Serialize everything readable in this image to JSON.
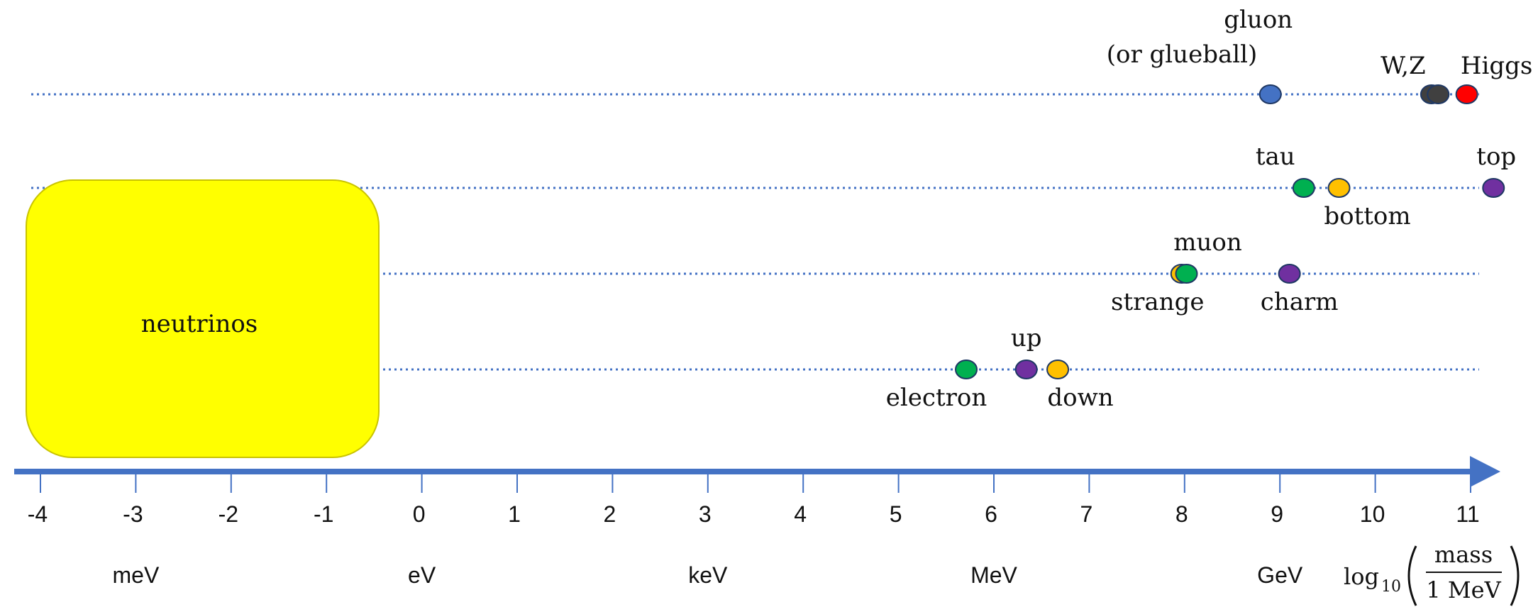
{
  "colors": {
    "axis": "#4472c4",
    "neutrino_box": "#ffff00",
    "lepton": "#00b050",
    "up_type_quark": "#7030a0",
    "down_type_quark": "#ffc000",
    "gluon": "#4472c4",
    "wz": "#404040",
    "higgs": "#ff0000"
  },
  "axis": {
    "ticks": [
      "-4",
      "-3",
      "-2",
      "-1",
      "0",
      "1",
      "2",
      "3",
      "4",
      "5",
      "6",
      "7",
      "8",
      "9",
      "10",
      "11"
    ],
    "units": [
      {
        "label": "meV",
        "at": -3
      },
      {
        "label": "eV",
        "at": 0
      },
      {
        "label": "keV",
        "at": 3
      },
      {
        "label": "MeV",
        "at": 6
      },
      {
        "label": "GeV",
        "at": 9
      }
    ],
    "title_log": "log",
    "title_sub": "10",
    "title_num": "mass",
    "title_den": "1 MeV"
  },
  "neutrinos": {
    "label": "neutrinos",
    "from": -4,
    "to": -0.3
  },
  "particles": [
    {
      "name": "electron",
      "x": 5.71,
      "row": 4,
      "color": "lepton",
      "label": "electron"
    },
    {
      "name": "up",
      "x": 6.34,
      "row": 4,
      "color": "up_type_quark",
      "label": "up"
    },
    {
      "name": "down",
      "x": 6.67,
      "row": 4,
      "color": "down_type_quark",
      "label": "down"
    },
    {
      "name": "strange",
      "x": 7.97,
      "row": 3,
      "color": "down_type_quark",
      "label": "strange"
    },
    {
      "name": "muon",
      "x": 8.02,
      "row": 3,
      "color": "lepton",
      "label": "muon"
    },
    {
      "name": "charm",
      "x": 9.1,
      "row": 3,
      "color": "up_type_quark",
      "label": "charm"
    },
    {
      "name": "tau",
      "x": 9.25,
      "row": 2,
      "color": "lepton",
      "label": "tau"
    },
    {
      "name": "bottom",
      "x": 9.62,
      "row": 2,
      "color": "down_type_quark",
      "label": "bottom"
    },
    {
      "name": "top",
      "x": 11.24,
      "row": 2,
      "color": "up_type_quark",
      "label": "top"
    },
    {
      "name": "gluon",
      "x": 8.9,
      "row": 1,
      "color": "gluon",
      "label": "gluon"
    },
    {
      "name": "w",
      "x": 10.59,
      "row": 1,
      "color": "wz",
      "label": "W,Z"
    },
    {
      "name": "z",
      "x": 10.66,
      "row": 1,
      "color": "wz",
      "label": ""
    },
    {
      "name": "higgs",
      "x": 10.96,
      "row": 1,
      "color": "higgs",
      "label": "Higgs"
    }
  ],
  "extra_labels": {
    "gluon_line2": "(or glueball)"
  }
}
